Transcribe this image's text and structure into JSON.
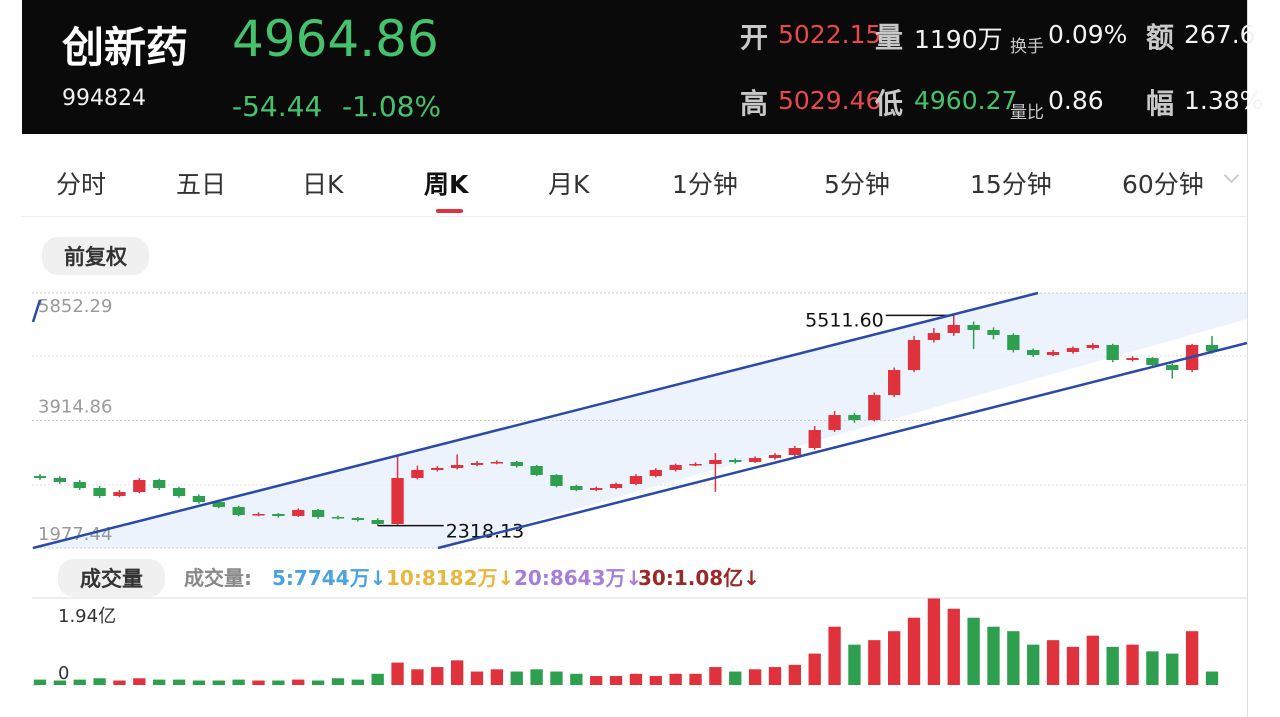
{
  "header": {
    "name": "创新药",
    "price": "4964.86",
    "code": "994824",
    "change": "-54.44",
    "change_pct": "-1.08%",
    "stats": [
      {
        "label": "开",
        "value": "5022.15"
      },
      {
        "label": "量",
        "value": "1190万"
      },
      {
        "label": "换手",
        "value": "0.09%"
      },
      {
        "label": "额",
        "value": "267.6"
      },
      {
        "label": "高",
        "value": "5029.46"
      },
      {
        "label": "低",
        "value": "4960.27"
      },
      {
        "label": "量比",
        "value": "0.86"
      },
      {
        "label": "幅",
        "value": "1.38%"
      }
    ]
  },
  "tabs": {
    "items": [
      "分时",
      "五日",
      "日K",
      "周K",
      "月K",
      "1分钟",
      "5分钟",
      "15分钟",
      "60分钟"
    ],
    "active": 3
  },
  "adjust_button": "前复权",
  "volume_legend": {
    "button": "成交量",
    "label": "成交量:",
    "items": [
      {
        "text": "5:7744万↓",
        "color": "#4aa3e0"
      },
      {
        "text": "10:8182万↓",
        "color": "#e8b63a"
      },
      {
        "text": "20:8643万↓",
        "color": "#a77fd8"
      },
      {
        "text": "30:1.08亿↓",
        "color": "#9a2a2a"
      }
    ]
  },
  "chart_data": [
    {
      "type": "candlestick",
      "up_color": "#e0323c",
      "down_color": "#2e9e4f",
      "ylim": [
        1977.44,
        5852.29
      ],
      "yticks": [
        1977.44,
        3914.86,
        5852.29
      ],
      "open": [
        3070,
        3041,
        2980,
        2889,
        2768,
        2828,
        3011,
        2889,
        2768,
        2676,
        2600,
        2479,
        2494,
        2464,
        2555,
        2448,
        2433,
        2403,
        2342,
        3041,
        3163,
        3193,
        3239,
        3269,
        3284,
        3223,
        3087,
        2920,
        2859,
        2889,
        2950,
        3071,
        3163,
        3239,
        3254,
        3315,
        3284,
        3345,
        3391,
        3497,
        3770,
        3998,
        3922,
        4302,
        4682,
        5138,
        5244,
        5366,
        5290,
        5214,
        4986,
        4910,
        4956,
        5016,
        5062,
        4834,
        4864,
        4758,
        4682,
        5062
      ],
      "close": [
        3041,
        2980,
        2889,
        2768,
        2828,
        3011,
        2889,
        2768,
        2676,
        2600,
        2479,
        2494,
        2464,
        2555,
        2448,
        2433,
        2403,
        2342,
        3041,
        3163,
        3193,
        3239,
        3269,
        3284,
        3223,
        3087,
        2920,
        2859,
        2889,
        2950,
        3071,
        3163,
        3239,
        3254,
        3315,
        3284,
        3345,
        3391,
        3497,
        3770,
        3998,
        3922,
        4302,
        4682,
        5138,
        5244,
        5366,
        5290,
        5214,
        4986,
        4910,
        4956,
        5016,
        5062,
        4834,
        4864,
        4758,
        4682,
        5062,
        4964.86
      ],
      "high": [
        3100,
        3070,
        3010,
        2920,
        2860,
        3040,
        3030,
        2910,
        2790,
        2700,
        2620,
        2520,
        2510,
        2580,
        2570,
        2470,
        2450,
        2430,
        3391,
        3230,
        3220,
        3400,
        3300,
        3310,
        3300,
        3240,
        3100,
        2940,
        2910,
        2970,
        3100,
        3190,
        3260,
        3280,
        3420,
        3340,
        3370,
        3420,
        3530,
        3830,
        4060,
        4030,
        4340,
        4720,
        5200,
        5320,
        5511.6,
        5420,
        5330,
        5240,
        5010,
        4990,
        5040,
        5090,
        5080,
        4890,
        4880,
        4780,
        5080,
        5200
      ],
      "low": [
        3010,
        2950,
        2860,
        2740,
        2750,
        2810,
        2860,
        2740,
        2650,
        2580,
        2460,
        2460,
        2440,
        2450,
        2420,
        2410,
        2380,
        2318.13,
        2330,
        3020,
        3140,
        3170,
        3220,
        3250,
        3200,
        3070,
        2900,
        2840,
        2840,
        2870,
        2930,
        3050,
        3140,
        3220,
        2830,
        3260,
        3270,
        3320,
        3370,
        3470,
        3740,
        3880,
        3900,
        4270,
        4650,
        5100,
        5200,
        5000,
        5150,
        4950,
        4880,
        4890,
        4930,
        4990,
        4800,
        4810,
        4730,
        4550,
        4650,
        4930
      ],
      "annotations": [
        {
          "value": 5511.6,
          "label": "5511.60"
        },
        {
          "value": 2318.13,
          "label": "2318.13"
        }
      ]
    },
    {
      "type": "bar",
      "ylim": [
        0,
        1.94
      ],
      "yticks": [
        {
          "value": 1.94,
          "label": "1.94亿"
        },
        0
      ],
      "values": [
        0.12,
        0.1,
        0.12,
        0.15,
        0.1,
        0.15,
        0.12,
        0.12,
        0.1,
        0.1,
        0.12,
        0.1,
        0.1,
        0.12,
        0.1,
        0.15,
        0.12,
        0.25,
        0.5,
        0.35,
        0.4,
        0.55,
        0.3,
        0.35,
        0.3,
        0.35,
        0.3,
        0.25,
        0.2,
        0.2,
        0.25,
        0.2,
        0.25,
        0.25,
        0.4,
        0.3,
        0.35,
        0.4,
        0.45,
        0.7,
        1.3,
        0.9,
        1.0,
        1.2,
        1.5,
        1.94,
        1.7,
        1.5,
        1.3,
        1.2,
        0.9,
        1.0,
        0.85,
        1.1,
        0.85,
        0.9,
        0.75,
        0.7,
        1.2,
        0.3
      ]
    }
  ]
}
